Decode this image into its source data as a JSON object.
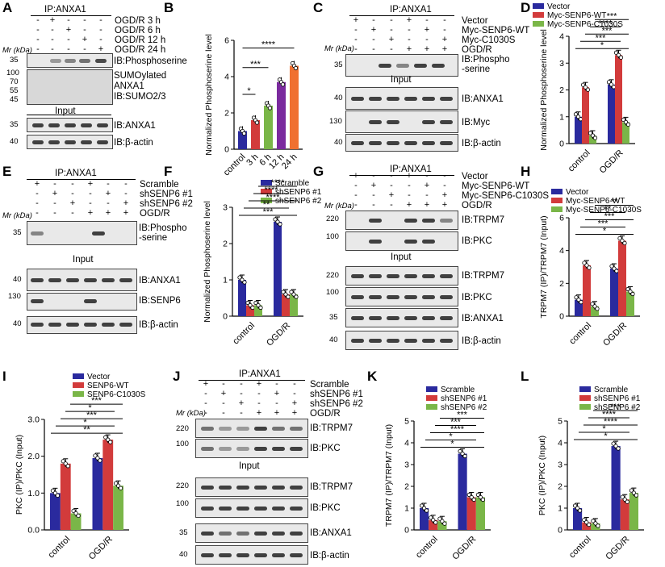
{
  "labels": {
    "A": "A",
    "B": "B",
    "C": "C",
    "D": "D",
    "E": "E",
    "F": "F",
    "G": "G",
    "H": "H",
    "I": "I",
    "J": "J",
    "K": "K",
    "L": "L"
  },
  "common": {
    "ip": "IP:ANXA1",
    "input": "Input",
    "mr": "Mr (kDa)",
    "pos": "+",
    "neg": "-"
  },
  "A": {
    "conds": [
      "OGD/R 3 h",
      "OGD/R 6 h",
      "OGD/R 12 h",
      "OGD/R 24 h"
    ],
    "blots": [
      "IB:Phosphoserine",
      "SUMOylated",
      "ANXA1",
      "IB:SUMO2/3",
      "IB:ANXA1",
      "IB:β-actin"
    ],
    "mw": [
      "35",
      "100",
      "70",
      "55",
      "45",
      "35",
      "40"
    ]
  },
  "C": {
    "conds": [
      "Vector",
      "Myc-SENP6-WT",
      "Myc-C1030S",
      "OGD/R"
    ],
    "blots": [
      "IB:Phospho",
      "-serine",
      "IB:ANXA1",
      "IB:Myc",
      "IB:β-actin"
    ],
    "mw": [
      "35",
      "40",
      "130",
      "40"
    ]
  },
  "E": {
    "conds": [
      "Scramble",
      "shSENP6 #1",
      "shSENP6 #2",
      "OGD/R"
    ],
    "blots": [
      "IB:Phospho",
      "-serine",
      "IB:ANXA1",
      "IB:SENP6",
      "IB:β-actin"
    ],
    "mw": [
      "35",
      "40",
      "130",
      "40"
    ]
  },
  "G": {
    "conds": [
      "Vector",
      "Myc-SENP6-WT",
      "Myc-SENP6-C1030S",
      "OGD/R"
    ],
    "blots": [
      "IB:TRPM7",
      "IB:PKC",
      "IB:TRPM7",
      "IB:PKC",
      "IB:ANXA1",
      "IB:β-actin"
    ],
    "mw": [
      "220",
      "100",
      "220",
      "100",
      "35",
      "40"
    ]
  },
  "J": {
    "conds": [
      "Scramble",
      "shSENP6 #1",
      "shSENP6 #2",
      "OGD/R"
    ],
    "blots": [
      "IB:TRPM7",
      "IB:PKC",
      "IB:TRPM7",
      "IB:PKC",
      "IB:ANXA1",
      "IB:β-actin"
    ],
    "mw": [
      "220",
      "100",
      "220",
      "100",
      "35",
      "40"
    ]
  },
  "chart_data": [
    {
      "panel": "B",
      "type": "bar",
      "ylabel": "Normalized Phosphoserine  level",
      "ylim": [
        0,
        6
      ],
      "yticks": [
        0,
        2,
        4,
        6
      ],
      "categories": [
        "control",
        "3 h",
        "6 h",
        "12 h",
        "24 h"
      ],
      "values": [
        1.0,
        1.6,
        2.4,
        3.7,
        4.6
      ],
      "colors": [
        "#2a2a9e",
        "#d23b3b",
        "#7ab648",
        "#7b2a9e",
        "#f07030"
      ],
      "sig": [
        "*",
        "***",
        "****"
      ]
    },
    {
      "panel": "D",
      "type": "bar",
      "ylabel": "Normalized Phosphoserine  level",
      "ylim": [
        0,
        4
      ],
      "yticks": [
        0,
        1,
        2,
        3,
        4
      ],
      "categories": [
        "control",
        "OGD/R"
      ],
      "series": [
        {
          "name": "Vector",
          "values": [
            1.0,
            2.2
          ]
        },
        {
          "name": "Myc-SENP6-WT",
          "values": [
            2.1,
            3.3
          ]
        },
        {
          "name": "Myc-SENP6-C1030S",
          "values": [
            0.3,
            0.8
          ]
        }
      ],
      "colors": [
        "#2a2a9e",
        "#d23b3b",
        "#7ab648"
      ],
      "sig": [
        "*",
        "***",
        "***",
        "****",
        "***"
      ]
    },
    {
      "panel": "F",
      "type": "bar",
      "ylabel": "Normalized Phosphoserine  level",
      "ylim": [
        0,
        3
      ],
      "yticks": [
        0,
        1,
        2,
        3
      ],
      "categories": [
        "control",
        "OGD/R"
      ],
      "series": [
        {
          "name": "Scramble",
          "values": [
            1.0,
            2.6
          ]
        },
        {
          "name": "shSENP6 #1",
          "values": [
            0.3,
            0.6
          ]
        },
        {
          "name": "shSENP6 #2",
          "values": [
            0.3,
            0.6
          ]
        }
      ],
      "colors": [
        "#2a2a9e",
        "#d23b3b",
        "#7ab648"
      ],
      "sig": [
        "***",
        "**",
        "****",
        "****",
        "****"
      ]
    },
    {
      "panel": "H",
      "type": "bar",
      "ylabel": "TRPM7 (IP)/TRPM7 (Input)",
      "ylim": [
        0,
        6
      ],
      "yticks": [
        0,
        2,
        4,
        6
      ],
      "categories": [
        "control",
        "OGD/R"
      ],
      "series": [
        {
          "name": "Vector",
          "values": [
            1.0,
            2.9
          ]
        },
        {
          "name": "Myc-SENP6-WT",
          "values": [
            3.1,
            4.6
          ]
        },
        {
          "name": "Myc-SENP6-C1030S",
          "values": [
            0.6,
            1.5
          ]
        }
      ],
      "colors": [
        "#2a2a9e",
        "#d23b3b",
        "#7ab648"
      ],
      "sig": [
        "*",
        "***",
        "***",
        "**",
        "**"
      ]
    },
    {
      "panel": "I",
      "type": "bar",
      "ylabel": "PKC (IP)/PKC (Input)",
      "ylim": [
        0,
        3
      ],
      "yticks": [
        0.0,
        1.0,
        2.0,
        3.0
      ],
      "categories": [
        "control",
        "OGD/R"
      ],
      "series": [
        {
          "name": "Vector",
          "values": [
            1.0,
            1.95
          ]
        },
        {
          "name": "SENP6-WT",
          "values": [
            1.8,
            2.45
          ]
        },
        {
          "name": "SENP6-C1030S",
          "values": [
            0.45,
            1.2
          ]
        }
      ],
      "colors": [
        "#2a2a9e",
        "#d23b3b",
        "#7ab648"
      ],
      "sig": [
        "**",
        "*",
        "***",
        "*",
        "***"
      ]
    },
    {
      "panel": "K",
      "type": "bar",
      "ylabel": "TRPM7 (IP)/TRPM7 (Input)",
      "ylim": [
        0,
        5
      ],
      "yticks": [
        0,
        1,
        2,
        3,
        4,
        5
      ],
      "categories": [
        "control",
        "OGD/R"
      ],
      "series": [
        {
          "name": "Scramble",
          "values": [
            1.0,
            3.5
          ]
        },
        {
          "name": "shSENP6 #1",
          "values": [
            0.45,
            1.5
          ]
        },
        {
          "name": "shSENP6 #2",
          "values": [
            0.4,
            1.5
          ]
        }
      ],
      "colors": [
        "#2a2a9e",
        "#d23b3b",
        "#7ab648"
      ],
      "sig": [
        "*",
        "*",
        "****",
        "***",
        "***"
      ]
    },
    {
      "panel": "L",
      "type": "bar",
      "ylabel": "PKC (IP)/PKC (Input)",
      "ylim": [
        0,
        5
      ],
      "yticks": [
        0,
        1,
        2,
        3,
        4,
        5
      ],
      "categories": [
        "control",
        "OGD/R"
      ],
      "series": [
        {
          "name": "Scramble",
          "values": [
            1.0,
            3.85
          ]
        },
        {
          "name": "shSENP6 #1",
          "values": [
            0.35,
            1.4
          ]
        },
        {
          "name": "shSENP6 #2",
          "values": [
            0.3,
            1.7
          ]
        }
      ],
      "colors": [
        "#2a2a9e",
        "#d23b3b",
        "#7ab648"
      ],
      "sig": [
        "*",
        "*",
        "****",
        "****",
        "***"
      ]
    }
  ]
}
